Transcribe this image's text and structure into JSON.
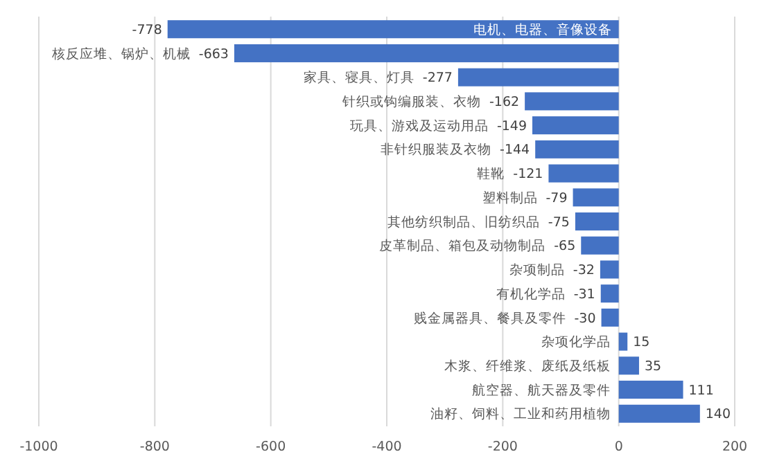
{
  "chart_data": {
    "type": "bar",
    "orientation": "horizontal",
    "categories": [
      "电机、电器、音像设备",
      "核反应堆、锅炉、机械",
      "家具、寝具、灯具",
      "针织或钩编服装、衣物",
      "玩具、游戏及运动用品",
      "非针织服装及衣物",
      "鞋靴",
      "塑料制品",
      "其他纺织制品、旧纺织品",
      "皮革制品、箱包及动物制品",
      "杂项制品",
      "有机化学品",
      "贱金属器具、餐具及零件",
      "杂项化学品",
      "木浆、纤维浆、废纸及纸板",
      "航空器、航天器及零件",
      "油籽、饲料、工业和药用植物"
    ],
    "values": [
      -778,
      -663,
      -277,
      -162,
      -149,
      -144,
      -121,
      -79,
      -75,
      -65,
      -32,
      -31,
      -30,
      15,
      35,
      111,
      140
    ],
    "color": "#4472c4",
    "data_labels": true,
    "grid": "x",
    "xlim": [
      -1000,
      200
    ],
    "xticks": [
      -1000,
      -800,
      -600,
      -400,
      -200,
      0,
      200
    ]
  }
}
